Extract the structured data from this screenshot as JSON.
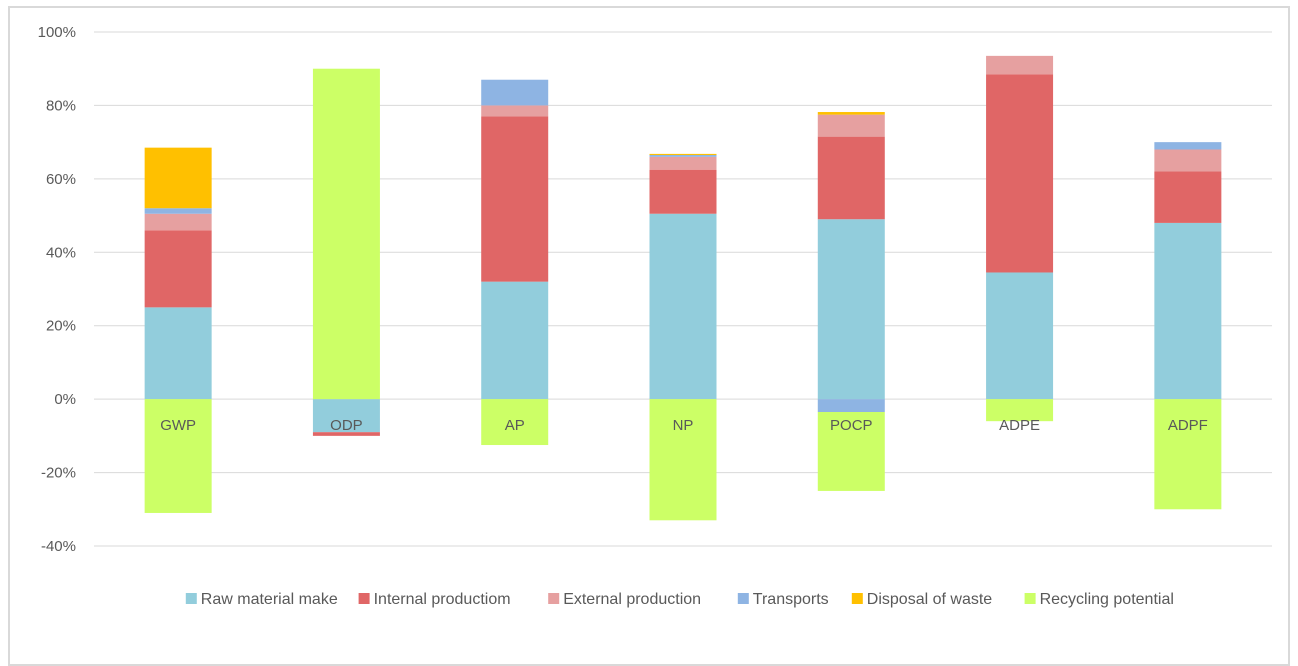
{
  "chart_data": {
    "type": "bar",
    "stacked": true,
    "categories": [
      "GWP",
      "ODP",
      "AP",
      "NP",
      "POCP",
      "ADPE",
      "ADPF"
    ],
    "ylim": [
      -40,
      100
    ],
    "yticks": [
      100,
      80,
      60,
      40,
      20,
      0,
      -20,
      -40
    ],
    "ytick_labels": [
      "100%",
      "80%",
      "60%",
      "40%",
      "20%",
      "0%",
      "-20%",
      "-40%"
    ],
    "grid": true,
    "legend_position": "bottom",
    "series": [
      {
        "name": "Raw material make",
        "color": "#92cddc",
        "values": [
          25,
          -9,
          32,
          50.5,
          49,
          34.5,
          48
        ]
      },
      {
        "name": "Internal productiom",
        "color": "#e06666",
        "values": [
          21,
          -1,
          45,
          12,
          22.5,
          54,
          14
        ]
      },
      {
        "name": "External production",
        "color": "#e6a0a0",
        "values": [
          4.5,
          0,
          3,
          3.5,
          6,
          5,
          6
        ]
      },
      {
        "name": "Transports",
        "color": "#8eb4e3",
        "values": [
          1.5,
          0,
          7,
          0.5,
          -3.5,
          0,
          2
        ]
      },
      {
        "name": "Disposal of waste",
        "color": "#ffc000",
        "values": [
          16.5,
          0,
          0,
          0.3,
          0.7,
          0,
          0
        ]
      },
      {
        "name": "Recycling potential",
        "color": "#ccff66",
        "values": [
          -31,
          90,
          -12.5,
          -33,
          -21.5,
          -6,
          -30
        ]
      }
    ]
  }
}
